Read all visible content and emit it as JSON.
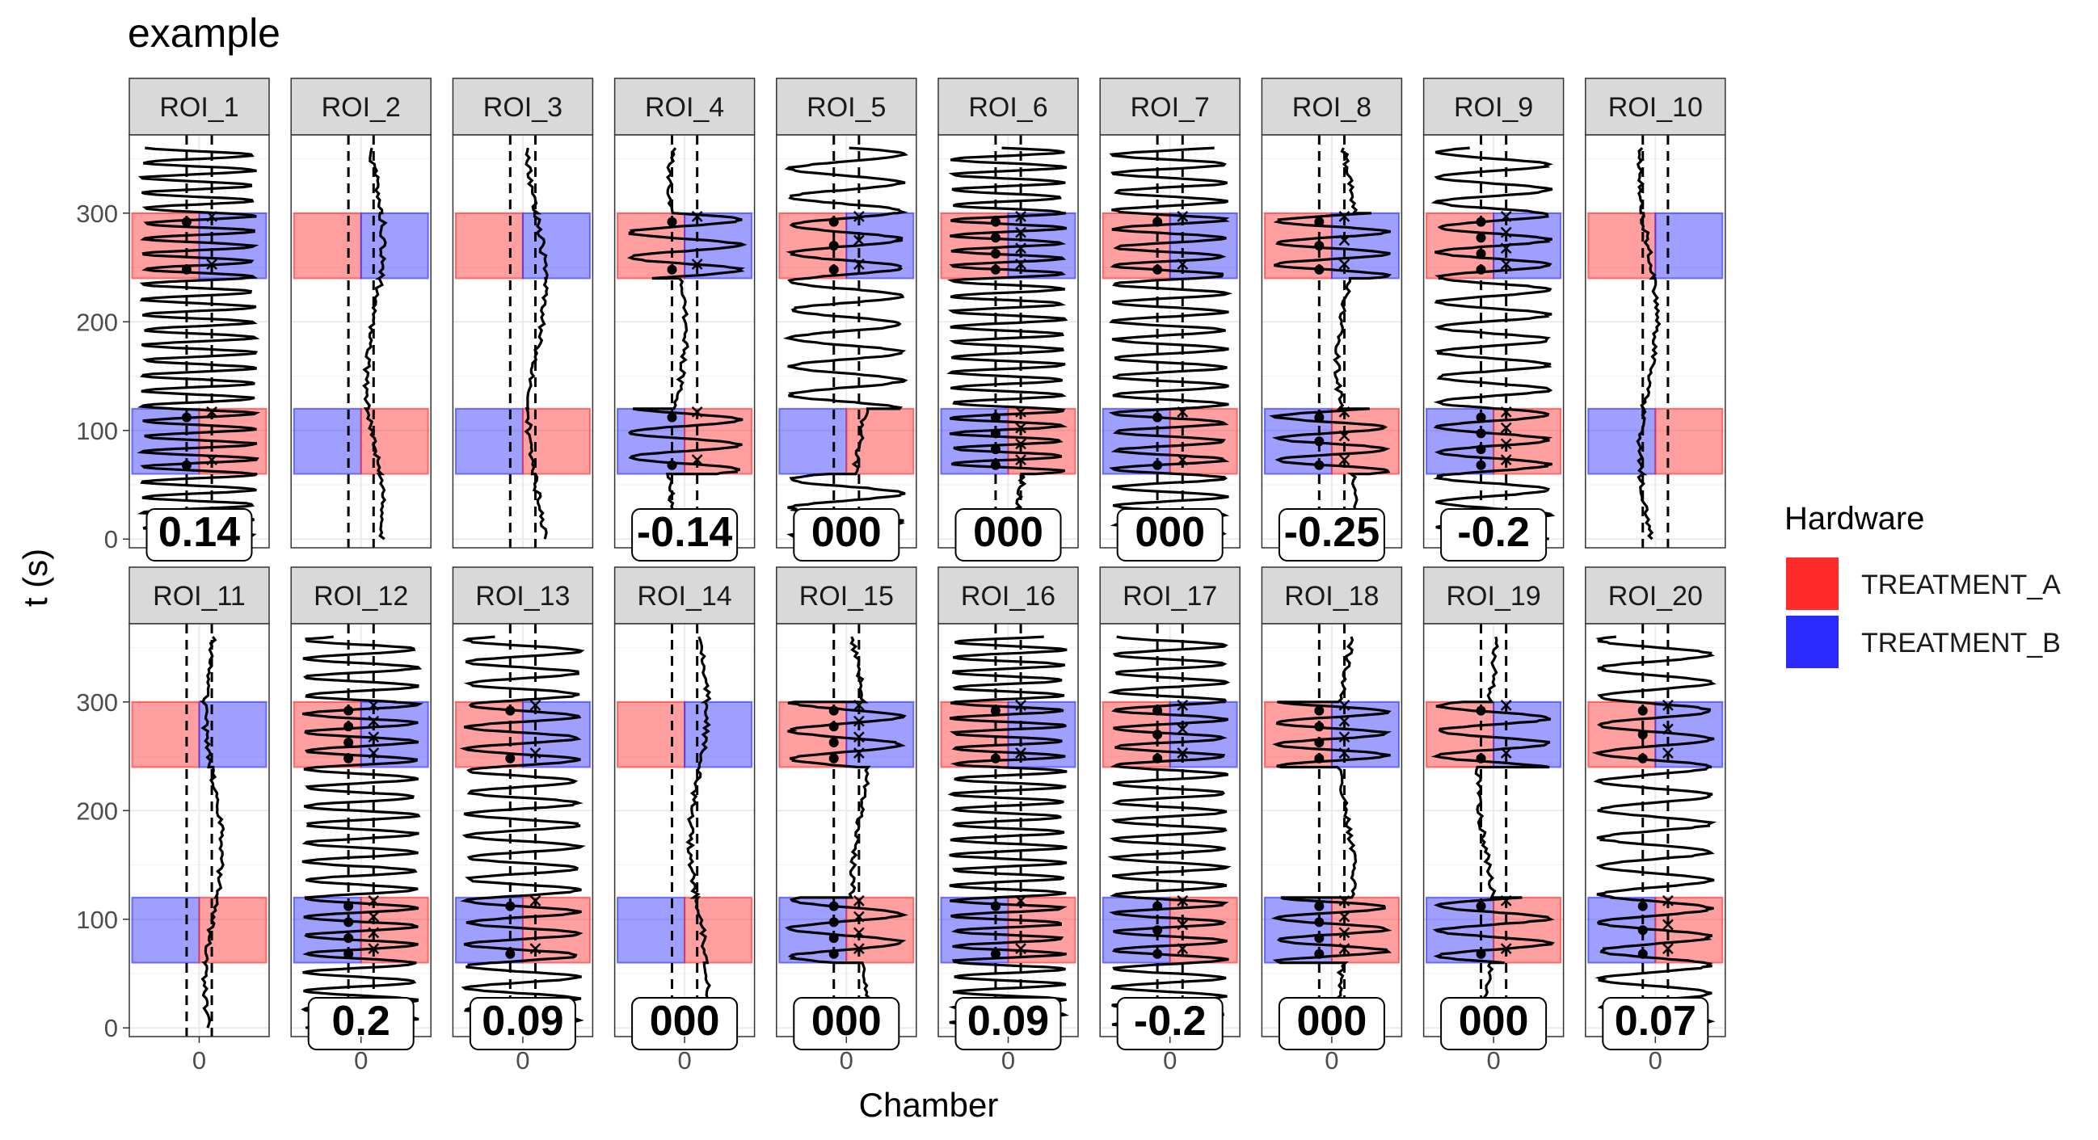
{
  "chart_data": {
    "type": "faceted-line",
    "title": "example",
    "xlabel": "Chamber",
    "ylabel": "t (s)",
    "xlim": [
      -0.5,
      0.5
    ],
    "ylim": [
      -8,
      372
    ],
    "y_ticks": [
      0,
      100,
      200,
      300
    ],
    "x_ticks": [
      0
    ],
    "x_tick_labels": [
      "0"
    ],
    "grid": true,
    "facet_layout": {
      "rows": 2,
      "cols": 10
    },
    "dashed_lines_x": [
      -0.09,
      0.09
    ],
    "legend": {
      "title": "Hardware",
      "position": "right",
      "entries": [
        {
          "label": "TREATMENT_A",
          "color": "#ff2a2a"
        },
        {
          "label": "TREATMENT_B",
          "color": "#2a2aff"
        }
      ]
    },
    "colors": {
      "TREATMENT_A": "#ff2a2a",
      "TREATMENT_B": "#2a2aff",
      "trace": "#000000",
      "strip_bg": "#d9d9d9",
      "grid": "#ebebeb"
    },
    "facets": [
      {
        "name": "ROI_1",
        "score": "0.14",
        "top": "A",
        "osc": [
          1,
          1,
          1,
          1,
          1
        ]
      },
      {
        "name": "ROI_2",
        "score": "",
        "top": "A",
        "osc": [
          0,
          0,
          0,
          0,
          0
        ]
      },
      {
        "name": "ROI_3",
        "score": "",
        "top": "A",
        "osc": [
          0,
          0,
          0,
          0,
          0
        ]
      },
      {
        "name": "ROI_4",
        "score": "-0.14",
        "top": "A",
        "osc": [
          0,
          1,
          0,
          1,
          0
        ]
      },
      {
        "name": "ROI_5",
        "score": "000",
        "top": "A",
        "osc": [
          1,
          0,
          1,
          1,
          1
        ]
      },
      {
        "name": "ROI_6",
        "score": "000",
        "top": "A",
        "osc": [
          0,
          1,
          1,
          1,
          1
        ]
      },
      {
        "name": "ROI_7",
        "score": "000",
        "top": "A",
        "osc": [
          1,
          1,
          1,
          1,
          1
        ]
      },
      {
        "name": "ROI_8",
        "score": "-0.25",
        "top": "A",
        "osc": [
          0,
          1,
          0,
          1,
          0
        ]
      },
      {
        "name": "ROI_9",
        "score": "-0.2",
        "top": "A",
        "osc": [
          1,
          1,
          1,
          1,
          1
        ]
      },
      {
        "name": "ROI_10",
        "score": "",
        "top": "A",
        "osc": [
          0,
          0,
          0,
          0,
          0
        ]
      },
      {
        "name": "ROI_11",
        "score": "",
        "top": "A",
        "osc": [
          0,
          0,
          0,
          0,
          0
        ]
      },
      {
        "name": "ROI_12",
        "score": "0.2",
        "top": "A",
        "osc": [
          1,
          1,
          1,
          1,
          1
        ]
      },
      {
        "name": "ROI_13",
        "score": "0.09",
        "top": "A",
        "osc": [
          1,
          1,
          1,
          1,
          1
        ]
      },
      {
        "name": "ROI_14",
        "score": "000",
        "top": "A",
        "osc": [
          0,
          0,
          0,
          0,
          0
        ]
      },
      {
        "name": "ROI_15",
        "score": "000",
        "top": "A",
        "osc": [
          0,
          1,
          0,
          1,
          0
        ]
      },
      {
        "name": "ROI_16",
        "score": "0.09",
        "top": "A",
        "osc": [
          1,
          1,
          1,
          1,
          1
        ]
      },
      {
        "name": "ROI_17",
        "score": "-0.2",
        "top": "A",
        "osc": [
          1,
          1,
          1,
          1,
          1
        ]
      },
      {
        "name": "ROI_18",
        "score": "000",
        "top": "A",
        "osc": [
          0,
          1,
          0,
          1,
          0
        ]
      },
      {
        "name": "ROI_19",
        "score": "000",
        "top": "A",
        "osc": [
          0,
          1,
          0,
          1,
          0
        ]
      },
      {
        "name": "ROI_20",
        "score": "0.07",
        "top": "A",
        "osc": [
          1,
          1,
          1,
          1,
          1
        ]
      }
    ],
    "treatment_bands": [
      {
        "y_range": [
          240,
          300
        ],
        "left": "TREATMENT_A",
        "right": "TREATMENT_B"
      },
      {
        "y_range": [
          60,
          120
        ],
        "left": "TREATMENT_B",
        "right": "TREATMENT_A"
      }
    ]
  }
}
